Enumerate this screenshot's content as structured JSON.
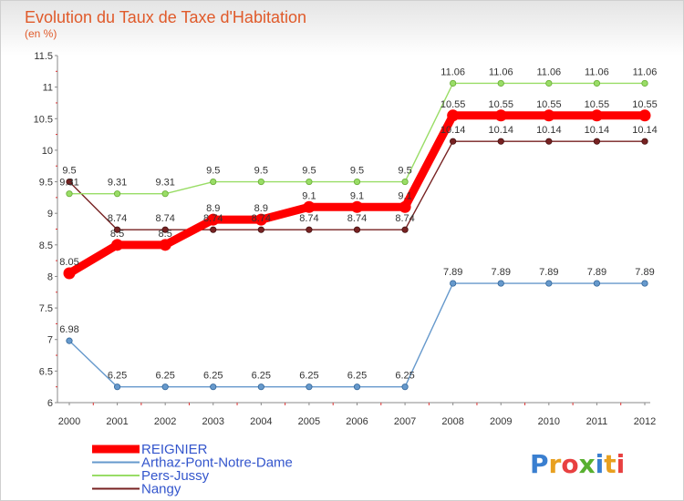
{
  "chart_data": {
    "type": "line",
    "title": "Evolution du Taux de Taxe d'Habitation",
    "subtitle": "(en %)",
    "x": [
      "2000",
      "2001",
      "2002",
      "2003",
      "2004",
      "2005",
      "2006",
      "2007",
      "2008",
      "2009",
      "2010",
      "2011",
      "2012"
    ],
    "ylim": [
      6,
      11.5
    ],
    "yticks": [
      "6",
      "6.5",
      "7",
      "7.5",
      "8",
      "8.5",
      "9",
      "9.5",
      "10",
      "10.5",
      "11",
      "11.5"
    ],
    "grid": false,
    "legend_position": "bottom-left",
    "series": [
      {
        "name": "REIGNIER",
        "color": "#ff0000",
        "values": [
          8.05,
          8.5,
          8.5,
          8.9,
          8.9,
          9.1,
          9.1,
          9.1,
          10.55,
          10.55,
          10.55,
          10.55,
          10.55
        ],
        "labels": [
          "8.05",
          "8.5",
          "8.5",
          "8.9",
          "8.9",
          "9.1",
          "9.1",
          "9.1",
          "10.55",
          "10.55",
          "10.55",
          "10.55",
          "10.55"
        ]
      },
      {
        "name": "Arthaz-Pont-Notre-Dame",
        "color": "#6699cc",
        "values": [
          6.98,
          6.25,
          6.25,
          6.25,
          6.25,
          6.25,
          6.25,
          6.25,
          7.89,
          7.89,
          7.89,
          7.89,
          7.89
        ],
        "labels": [
          "6.98",
          "6.25",
          "6.25",
          "6.25",
          "6.25",
          "6.25",
          "6.25",
          "6.25",
          "7.89",
          "7.89",
          "7.89",
          "7.89",
          "7.89"
        ]
      },
      {
        "name": "Pers-Jussy",
        "color": "#99dd66",
        "values": [
          9.31,
          9.31,
          9.31,
          9.5,
          9.5,
          9.5,
          9.5,
          9.5,
          11.06,
          11.06,
          11.06,
          11.06,
          11.06
        ],
        "labels": [
          "9.31",
          "9.31",
          "9.31",
          "9.5",
          "9.5",
          "9.5",
          "9.5",
          "9.5",
          "11.06",
          "11.06",
          "11.06",
          "11.06",
          "11.06"
        ]
      },
      {
        "name": "Nangy",
        "color": "#772222",
        "values": [
          9.5,
          8.74,
          8.74,
          8.74,
          8.74,
          8.74,
          8.74,
          8.74,
          10.14,
          10.14,
          10.14,
          10.14,
          10.14
        ],
        "labels": [
          "9.5",
          "8.74",
          "8.74",
          "8.74",
          "8.74",
          "8.74",
          "8.74",
          "8.74",
          "10.14",
          "10.14",
          "10.14",
          "10.14",
          "10.14"
        ]
      }
    ]
  },
  "logo": {
    "text": "Proxiti",
    "colors": [
      "#3a7fd0",
      "#e8a020",
      "#e84040",
      "#58b030"
    ]
  }
}
